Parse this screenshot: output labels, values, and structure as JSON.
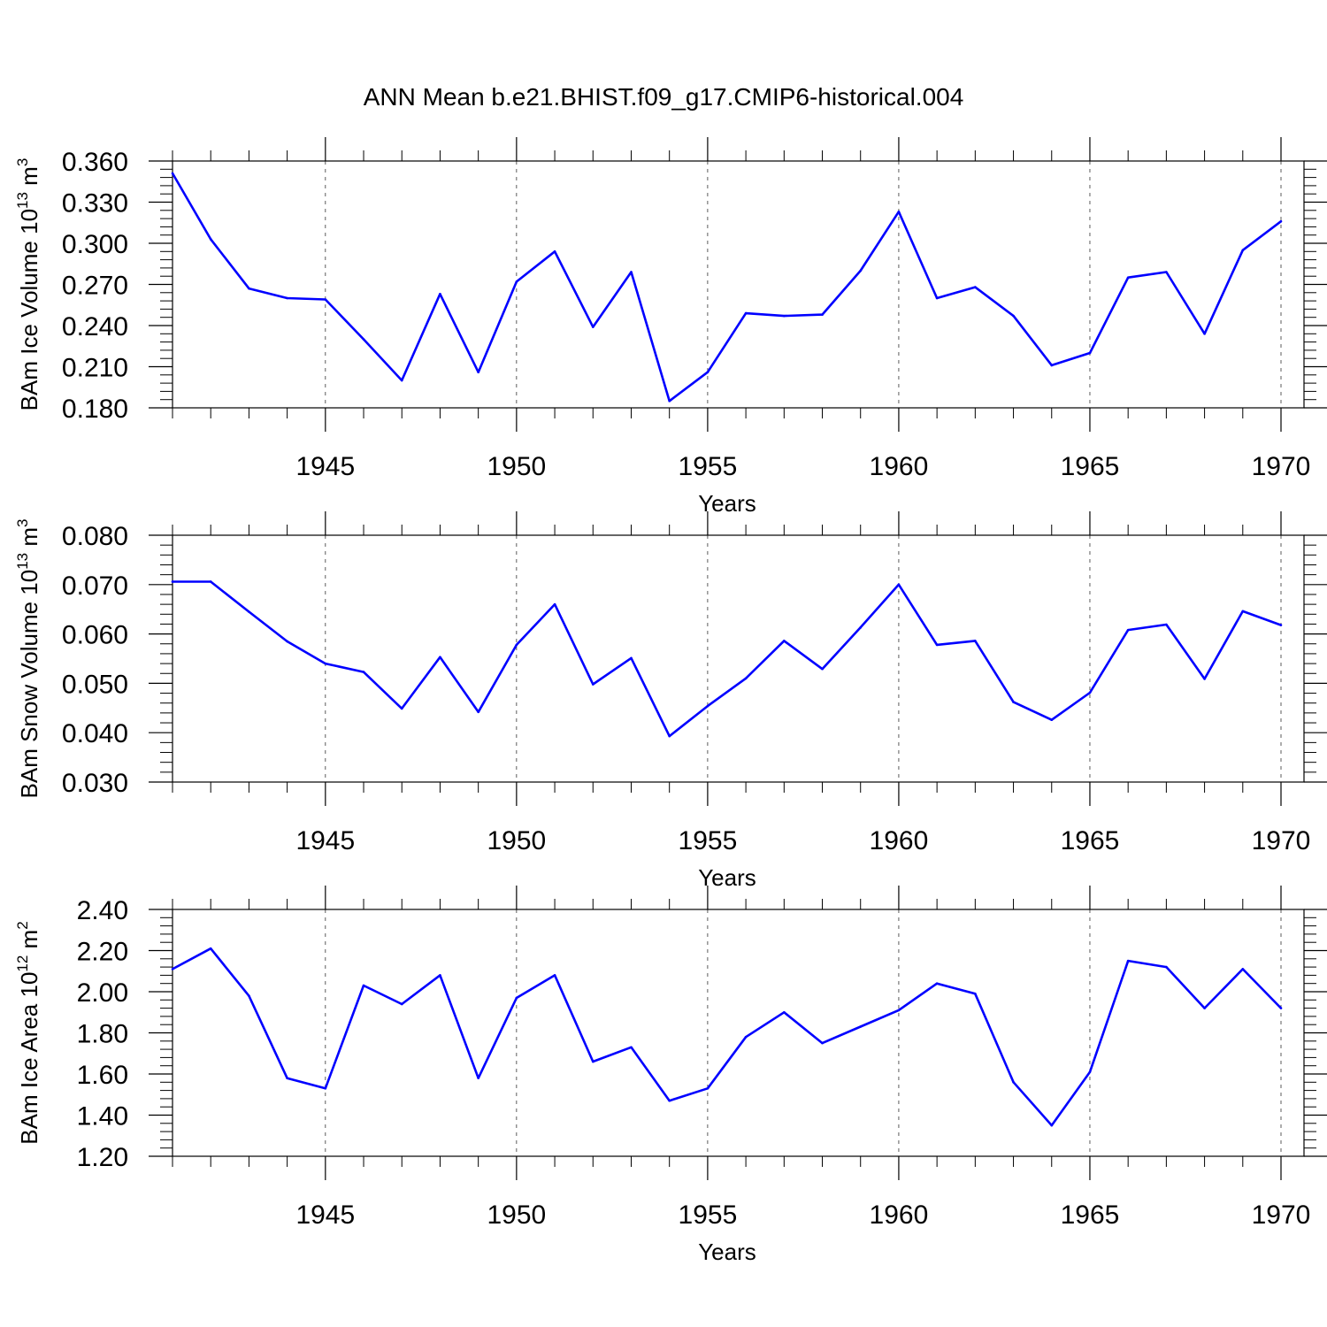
{
  "page_title": "ANN Mean b.e21.BHIST.f09_g17.CMIP6-historical.004",
  "colors": {
    "series": "#0000ff",
    "frame": "#000000",
    "grid": "#000000",
    "background": "#ffffff"
  },
  "chart_data": [
    {
      "type": "line",
      "title": "ANN Mean b.e21.BHIST.f09_g17.CMIP6-historical.004",
      "ylabel": {
        "main": "BAm Ice Volume 10",
        "sup": "13",
        "unit": " m",
        "unit_sup": "3"
      },
      "xlabel": "Years",
      "xlim": [
        1941,
        1970
      ],
      "ylim": [
        0.18,
        0.36
      ],
      "yticks": [
        "0.180",
        "0.210",
        "0.240",
        "0.270",
        "0.300",
        "0.330",
        "0.360"
      ],
      "xticks": [
        "1945",
        "1950",
        "1955",
        "1960",
        "1965",
        "1970"
      ],
      "grid": "vertical dashed lines at labeled years",
      "x": [
        1941,
        1942,
        1943,
        1944,
        1945,
        1946,
        1947,
        1948,
        1949,
        1950,
        1951,
        1952,
        1953,
        1954,
        1955,
        1956,
        1957,
        1958,
        1959,
        1960,
        1961,
        1962,
        1963,
        1964,
        1965,
        1966,
        1967,
        1968,
        1969,
        1970
      ],
      "values": [
        0.351,
        0.303,
        0.267,
        0.26,
        0.259,
        0.23,
        0.2,
        0.263,
        0.206,
        0.272,
        0.294,
        0.239,
        0.279,
        0.185,
        0.206,
        0.249,
        0.247,
        0.248,
        0.28,
        0.323,
        0.26,
        0.268,
        0.247,
        0.211,
        0.22,
        0.275,
        0.279,
        0.234,
        0.295,
        0.316
      ]
    },
    {
      "type": "line",
      "ylabel": {
        "main": "BAm Snow Volume 10",
        "sup": "13",
        "unit": " m",
        "unit_sup": "3"
      },
      "xlabel": "Years",
      "xlim": [
        1941,
        1970
      ],
      "ylim": [
        0.03,
        0.08
      ],
      "yticks": [
        "0.030",
        "0.040",
        "0.050",
        "0.060",
        "0.070",
        "0.080"
      ],
      "xticks": [
        "1945",
        "1950",
        "1955",
        "1960",
        "1965",
        "1970"
      ],
      "grid": "vertical dashed lines at labeled years",
      "x": [
        1941,
        1942,
        1943,
        1944,
        1945,
        1946,
        1947,
        1948,
        1949,
        1950,
        1951,
        1952,
        1953,
        1954,
        1955,
        1956,
        1957,
        1958,
        1959,
        1960,
        1961,
        1962,
        1963,
        1964,
        1965,
        1966,
        1967,
        1968,
        1969,
        1970
      ],
      "values": [
        0.0706,
        0.0706,
        0.0645,
        0.0585,
        0.054,
        0.0523,
        0.0449,
        0.0553,
        0.0442,
        0.0578,
        0.066,
        0.0498,
        0.0551,
        0.0393,
        0.0454,
        0.051,
        0.0586,
        0.0529,
        0.0613,
        0.07,
        0.0578,
        0.0586,
        0.0462,
        0.0426,
        0.0481,
        0.0608,
        0.0619,
        0.0509,
        0.0646,
        0.0618
      ]
    },
    {
      "type": "line",
      "ylabel": {
        "main": "BAm Ice Area 10",
        "sup": "12",
        "unit": " m",
        "unit_sup": "2"
      },
      "xlabel": "Years",
      "xlim": [
        1941,
        1970
      ],
      "ylim": [
        1.2,
        2.4
      ],
      "yticks": [
        "1.20",
        "1.40",
        "1.60",
        "1.80",
        "2.00",
        "2.20",
        "2.40"
      ],
      "xticks": [
        "1945",
        "1950",
        "1955",
        "1960",
        "1965",
        "1970"
      ],
      "grid": "vertical dashed lines at labeled years",
      "x": [
        1941,
        1942,
        1943,
        1944,
        1945,
        1946,
        1947,
        1948,
        1949,
        1950,
        1951,
        1952,
        1953,
        1954,
        1955,
        1956,
        1957,
        1958,
        1959,
        1960,
        1961,
        1962,
        1963,
        1964,
        1965,
        1966,
        1967,
        1968,
        1969,
        1970
      ],
      "values": [
        2.11,
        2.21,
        1.98,
        1.58,
        1.53,
        2.03,
        1.94,
        2.08,
        1.58,
        1.97,
        2.08,
        1.66,
        1.73,
        1.47,
        1.53,
        1.78,
        1.9,
        1.75,
        1.83,
        1.91,
        2.04,
        1.99,
        1.56,
        1.35,
        1.61,
        2.15,
        2.12,
        1.92,
        2.11,
        1.92
      ]
    }
  ]
}
